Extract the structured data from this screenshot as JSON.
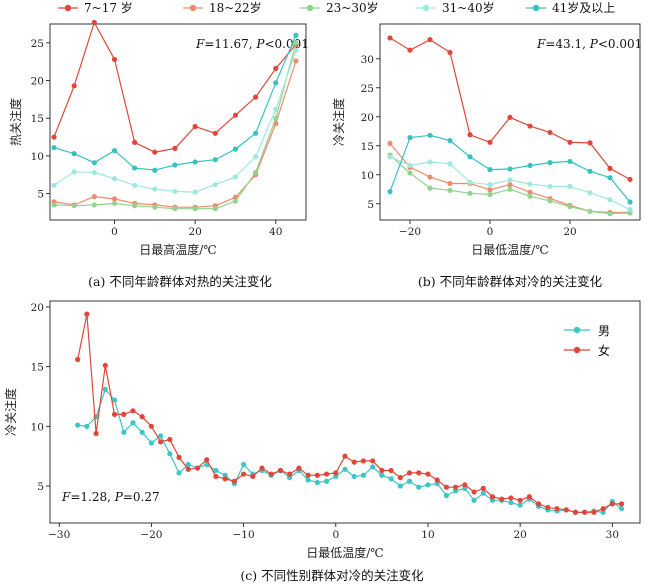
{
  "legend_top": [
    "7~17 岁",
    "18~22岁",
    "23~30岁",
    "31~40岁",
    "41岁及以上"
  ],
  "colors": {
    "age": [
      "#e0473a",
      "#f08a6c",
      "#8fd48f",
      "#9fe8df",
      "#37c2c2"
    ],
    "gender": [
      "#3cc6c6",
      "#e0473a"
    ]
  },
  "chart_data": [
    {
      "type": "line",
      "panel": "a",
      "caption": "(a) 不同年龄群体对热的关注变化",
      "xlabel": "日最高温度/℃",
      "ylabel": "热关注度",
      "stat_text": [
        "F",
        "=11.67, ",
        "P",
        "<0.001"
      ],
      "xlim": [
        -16,
        47.5
      ],
      "ylim": [
        1.5,
        27.5
      ],
      "xticks": [
        0,
        20,
        40
      ],
      "yticks": [
        5,
        10,
        15,
        20,
        25
      ],
      "x": [
        -15,
        -10,
        -5,
        0,
        5,
        10,
        15,
        20,
        25,
        30,
        35,
        40,
        45
      ],
      "series": [
        {
          "name": "7~17 岁",
          "values": [
            12.5,
            19.3,
            27.7,
            22.8,
            11.8,
            10.5,
            11.0,
            13.9,
            13.0,
            15.4,
            17.8,
            21.6,
            24.8
          ]
        },
        {
          "name": "18~22岁",
          "values": [
            3.9,
            3.5,
            4.6,
            4.3,
            3.7,
            3.5,
            3.2,
            3.2,
            3.4,
            4.5,
            7.5,
            14.3,
            22.6
          ]
        },
        {
          "name": "23~30岁",
          "values": [
            3.5,
            3.4,
            3.5,
            3.7,
            3.4,
            3.2,
            3.0,
            3.0,
            3.0,
            4.0,
            7.8,
            15.0,
            25.0
          ]
        },
        {
          "name": "31~40岁",
          "values": [
            6.1,
            7.9,
            7.8,
            7.0,
            6.1,
            5.6,
            5.3,
            5.2,
            6.2,
            7.2,
            9.9,
            16.2,
            24.0
          ]
        },
        {
          "name": "41岁及以上",
          "values": [
            11.1,
            10.3,
            9.1,
            10.7,
            8.4,
            8.1,
            8.8,
            9.2,
            9.5,
            10.9,
            13.0,
            19.7,
            26.0
          ]
        }
      ]
    },
    {
      "type": "line",
      "panel": "b",
      "caption": "(b) 不同年龄群体对冷的关注变化",
      "xlabel": "日最低温度/℃",
      "ylabel": "冷关注度",
      "stat_text": [
        "F",
        "=43.1, ",
        "P",
        "<0.001"
      ],
      "xlim": [
        -27.5,
        37.5
      ],
      "ylim": [
        2.2,
        36
      ],
      "xticks": [
        -20,
        0,
        20
      ],
      "yticks": [
        5,
        10,
        15,
        20,
        25,
        30
      ],
      "x": [
        -25,
        -20,
        -15,
        -10,
        -5,
        0,
        5,
        10,
        15,
        20,
        25,
        30,
        35
      ],
      "series": [
        {
          "name": "7~17 岁",
          "values": [
            33.6,
            31.5,
            33.3,
            31.1,
            16.9,
            15.6,
            19.9,
            18.4,
            17.3,
            15.6,
            15.5,
            11.1,
            9.2
          ]
        },
        {
          "name": "18~22岁",
          "values": [
            15.4,
            11.3,
            9.6,
            8.5,
            8.5,
            7.4,
            8.3,
            7.0,
            5.9,
            4.7,
            3.7,
            3.5,
            3.5
          ]
        },
        {
          "name": "23~30岁",
          "values": [
            13.4,
            10.3,
            7.7,
            7.3,
            6.8,
            6.6,
            7.5,
            6.3,
            5.5,
            4.5,
            3.7,
            3.3,
            3.4
          ]
        },
        {
          "name": "31~40岁",
          "values": [
            13.1,
            11.6,
            12.2,
            11.9,
            8.7,
            8.3,
            9.1,
            8.4,
            8.0,
            8.0,
            6.9,
            5.7,
            4.0
          ]
        },
        {
          "name": "41岁及以上",
          "values": [
            7.1,
            16.4,
            16.8,
            15.9,
            13.1,
            10.9,
            11.0,
            11.6,
            12.1,
            12.3,
            10.6,
            9.5,
            5.3
          ]
        }
      ]
    },
    {
      "type": "line",
      "panel": "c",
      "caption": "(c) 不同性别群体对冷的关注变化",
      "xlabel": "日最低温度/℃",
      "ylabel": "冷关注度",
      "stat_text": [
        "F",
        "=1.28, ",
        "P",
        "=0.27"
      ],
      "legend": [
        "男",
        "女"
      ],
      "xlim": [
        -31,
        33
      ],
      "ylim": [
        1.9,
        20.5
      ],
      "xticks": [
        -30,
        -20,
        -10,
        0,
        10,
        20,
        30
      ],
      "yticks": [
        5,
        10,
        15,
        20
      ],
      "x": [
        -28,
        -27,
        -26,
        -25,
        -24,
        -23,
        -22,
        -21,
        -20,
        -19,
        -18,
        -17,
        -16,
        -15,
        -14,
        -13,
        -12,
        -11,
        -10,
        -9,
        -8,
        -7,
        -6,
        -5,
        -4,
        -3,
        -2,
        -1,
        0,
        1,
        2,
        3,
        4,
        5,
        6,
        7,
        8,
        9,
        10,
        11,
        12,
        13,
        14,
        15,
        16,
        17,
        18,
        19,
        20,
        21,
        22,
        23,
        24,
        25,
        26,
        27,
        28,
        29,
        30,
        31
      ],
      "series": [
        {
          "name": "男",
          "values": [
            10.1,
            10.0,
            10.8,
            13.1,
            12.2,
            9.5,
            10.3,
            9.5,
            8.6,
            9.2,
            7.7,
            6.1,
            6.8,
            6.5,
            6.8,
            6.3,
            5.9,
            5.2,
            6.8,
            6.0,
            6.3,
            5.9,
            6.3,
            5.7,
            6.3,
            5.5,
            5.3,
            5.4,
            5.8,
            6.4,
            5.8,
            5.9,
            6.6,
            5.9,
            5.6,
            5.0,
            5.4,
            4.9,
            5.1,
            5.2,
            4.2,
            4.6,
            4.8,
            3.8,
            4.4,
            3.8,
            3.8,
            3.6,
            3.4,
            3.9,
            3.3,
            3.0,
            2.9,
            3.0,
            2.8,
            2.8,
            2.9,
            2.8,
            3.7,
            3.1
          ]
        },
        {
          "name": "女",
          "values": [
            15.6,
            19.4,
            9.4,
            15.1,
            11.0,
            11.0,
            11.3,
            10.8,
            10.0,
            8.7,
            8.9,
            7.4,
            6.4,
            6.5,
            7.2,
            5.8,
            5.6,
            5.4,
            6.0,
            5.8,
            6.5,
            6.0,
            6.3,
            6.0,
            6.5,
            5.9,
            5.9,
            6.0,
            6.1,
            7.5,
            7.0,
            7.1,
            7.1,
            6.3,
            6.3,
            5.7,
            6.1,
            6.1,
            6.0,
            5.5,
            4.9,
            4.9,
            5.1,
            4.5,
            4.8,
            4.1,
            3.9,
            4.0,
            3.8,
            4.1,
            3.5,
            3.2,
            3.1,
            3.0,
            2.8,
            2.8,
            2.8,
            3.1,
            3.5,
            3.5
          ]
        }
      ]
    }
  ]
}
